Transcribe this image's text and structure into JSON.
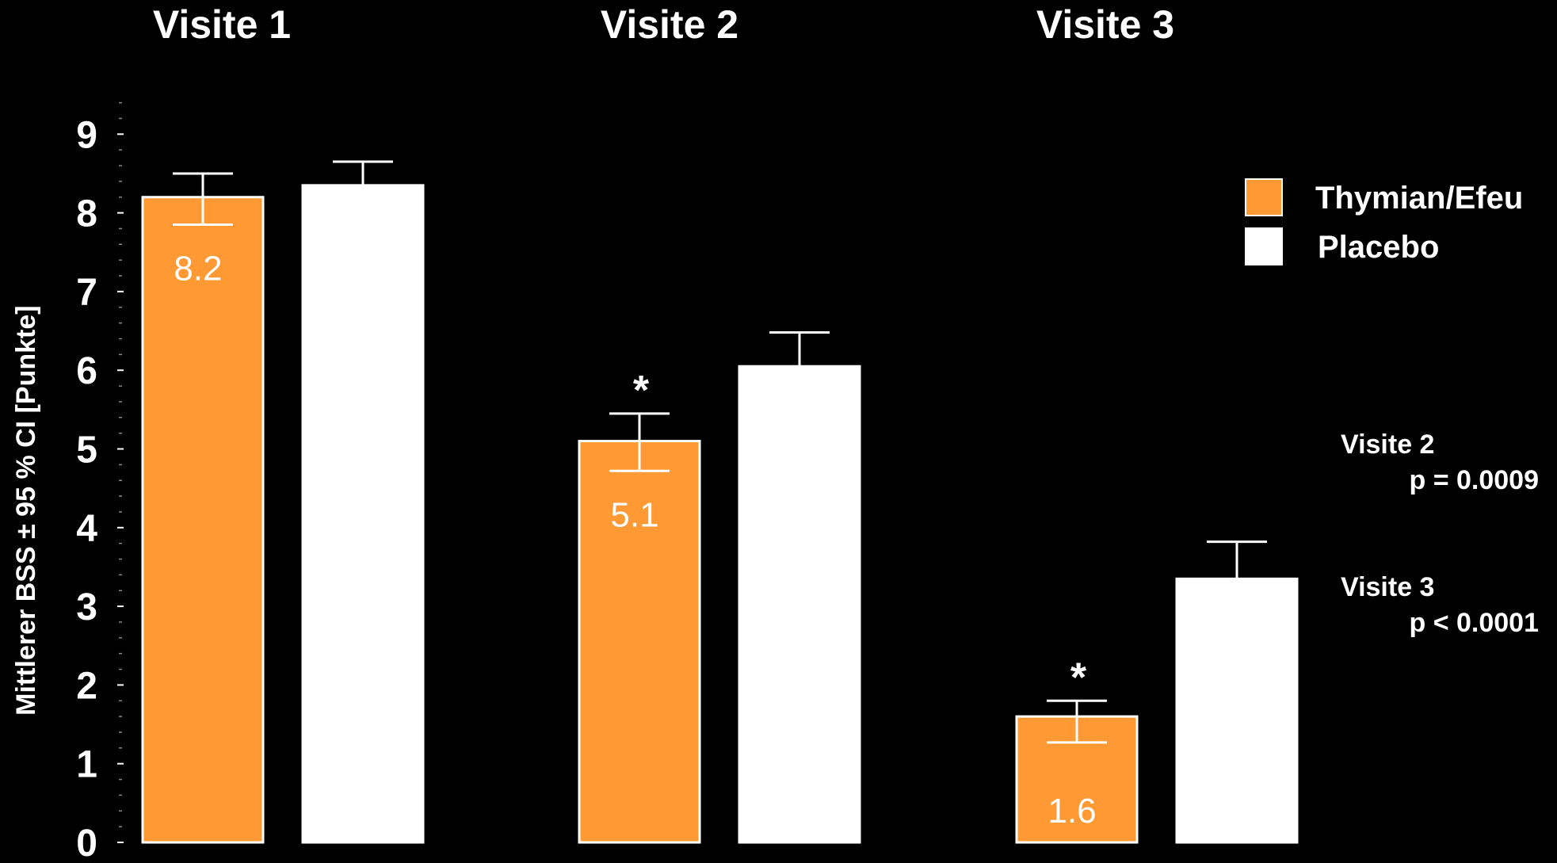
{
  "chart_data": {
    "type": "bar",
    "categories": [
      "Visite 1",
      "Visite 2",
      "Visite 3"
    ],
    "ylabel": "Mittlerer BSS ± 95 % CI [Punkte]",
    "ylim": [
      0,
      9
    ],
    "yticks": [
      "0",
      "1",
      "2",
      "3",
      "4",
      "5",
      "6",
      "7",
      "8",
      "9"
    ],
    "minor_ticks_per_unit": 5,
    "series": [
      {
        "name": "Thymian/Efeu",
        "color": "#FF9933",
        "values": [
          8.2,
          5.1,
          1.6
        ],
        "ci_low": [
          7.85,
          4.72,
          1.27
        ],
        "ci_high": [
          8.5,
          5.45,
          1.8
        ],
        "value_labels": [
          "8.2",
          "5.1",
          "1.6"
        ],
        "significance": [
          "",
          "*",
          "*"
        ]
      },
      {
        "name": "Placebo",
        "color": "#FFFFFF",
        "values": [
          8.35,
          6.05,
          3.35
        ],
        "ci_high": [
          8.65,
          6.48,
          3.82
        ]
      }
    ],
    "legend_position": "top-right",
    "grid": false
  },
  "annotations": [
    {
      "visit": "Visite 2",
      "p": "p = 0.0009"
    },
    {
      "visit": "Visite 3",
      "p": "p < 0.0001"
    }
  ]
}
